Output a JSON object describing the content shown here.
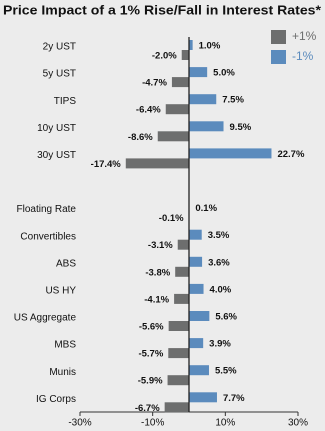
{
  "chart_data": {
    "type": "hbar",
    "title": "Price Impact of a 1% Rise/Fall in Interest Rates*",
    "categories": [
      "2y UST",
      "5y UST",
      "TIPS",
      "10y UST",
      "30y UST",
      null,
      "Floating Rate",
      "Convertibles",
      "ABS",
      "US HY",
      "US Aggregate",
      "MBS",
      "Munis",
      "IG Corps"
    ],
    "series": [
      {
        "name": "+1%",
        "color": "#6d6e6e",
        "values": [
          -2.0,
          -4.7,
          -6.4,
          -8.6,
          -17.4,
          null,
          -0.1,
          -3.1,
          -3.8,
          -4.1,
          -5.6,
          -5.7,
          -5.9,
          -6.7
        ],
        "value_labels": [
          "-2.0%",
          "-4.7%",
          "-6.4%",
          "-8.6%",
          "-17.4%",
          null,
          "-0.1%",
          "-3.1%",
          "-3.8%",
          "-4.1%",
          "-5.6%",
          "-5.7%",
          "-5.9%",
          "-6.7%"
        ]
      },
      {
        "name": "-1%",
        "color": "#5b8bbd",
        "values": [
          1.0,
          5.0,
          7.5,
          9.5,
          22.7,
          null,
          0.1,
          3.5,
          3.6,
          4.0,
          5.6,
          3.9,
          5.5,
          7.7
        ],
        "value_labels": [
          "1.0%",
          "5.0%",
          "7.5%",
          "9.5%",
          "22.7%",
          null,
          "0.1%",
          "3.5%",
          "3.6%",
          "4.0%",
          "5.6%",
          "3.9%",
          "5.5%",
          "7.7%"
        ]
      }
    ],
    "xlim": [
      -30,
      30
    ],
    "xticks": [
      {
        "value": -30,
        "label": "-30%"
      },
      {
        "value": -10,
        "label": "-10%"
      },
      {
        "value": 10,
        "label": "10%"
      },
      {
        "value": 30,
        "label": "30%"
      }
    ],
    "legend": "top-right"
  }
}
